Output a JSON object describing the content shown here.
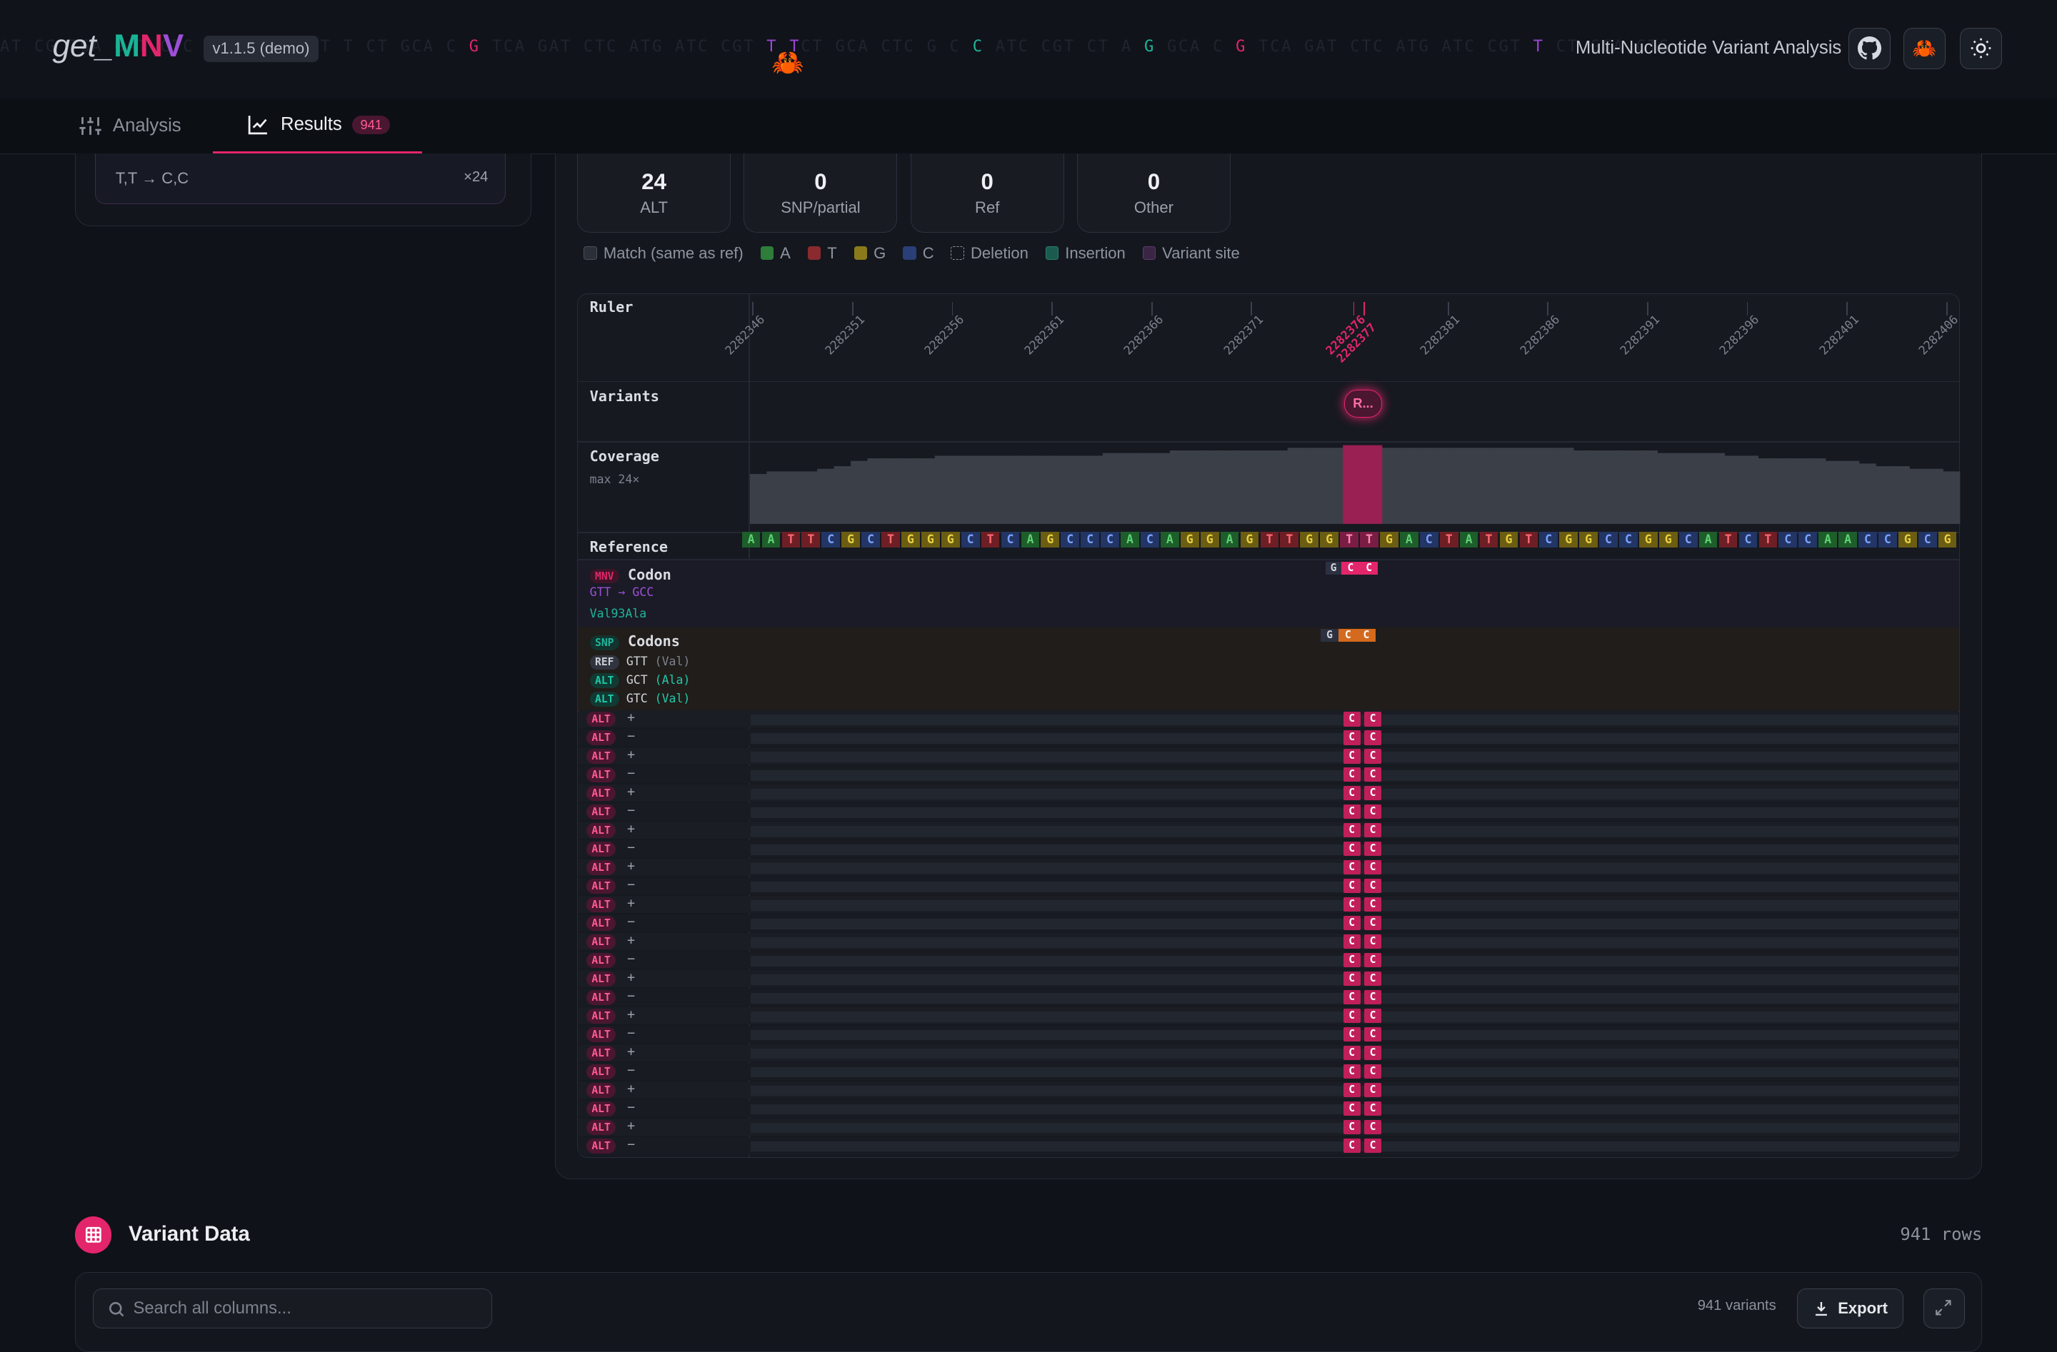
{
  "header": {
    "logo_prefix": "get_",
    "logo_m": "M",
    "logo_n": "N",
    "logo_v": "V",
    "version": "v1.1.5 (demo)",
    "title": "Multi-Nucleotide Variant Analysis",
    "buttons": [
      "github-icon",
      "crab-icon",
      "sun-icon"
    ]
  },
  "tabs": [
    {
      "label": "Analysis",
      "icon": "sliders-icon"
    },
    {
      "label": "Results",
      "icon": "chart-line-icon",
      "count": "941"
    }
  ],
  "left_panel": {
    "mnv_label": "T,T → C,C",
    "mnv_count": "×24"
  },
  "stats": [
    {
      "value": "24",
      "label": "ALT"
    },
    {
      "value": "0",
      "label": "SNP/partial"
    },
    {
      "value": "0",
      "label": "Ref"
    },
    {
      "value": "0",
      "label": "Other"
    }
  ],
  "legend": [
    {
      "label": "Match (same as ref)",
      "color": "#2a2f38"
    },
    {
      "label": "A",
      "color": "#2e7d3a"
    },
    {
      "label": "T",
      "color": "#8a2a2e"
    },
    {
      "label": "G",
      "color": "#8a7a1c"
    },
    {
      "label": "C",
      "color": "#2a3f77"
    },
    {
      "label": "Deletion",
      "color": "dashed"
    },
    {
      "label": "Insertion",
      "color": "#1c5a4e"
    },
    {
      "label": "Variant site",
      "color": "#3a2545"
    }
  ],
  "viewer": {
    "ruler_label": "Ruler",
    "ruler_ticks": [
      "2282346",
      "2282351",
      "2282356",
      "2282361",
      "2282366",
      "2282371",
      "2282376",
      "2282377",
      "2282381",
      "2282386",
      "2282391",
      "2282396",
      "2282401",
      "2282406"
    ],
    "variants_label": "Variants",
    "variant_chip": "R...",
    "coverage_label": "Coverage",
    "coverage_max": "max 24×",
    "reference_label": "Reference",
    "reference_sequence": "AATTCGCTGGGCTCAGCCCACAGGAGTTGGTTGACTATGTCGGCCGGCATCTCCAACCGCG",
    "mnv_badge": "MNV",
    "codon_label": "Codon",
    "codon_change": "GTT → GCC",
    "protein_change": "Val93Ala",
    "snp_badge": "SNP",
    "codons_label": "Codons",
    "codon_lines": [
      {
        "tag": "REF",
        "codon": "GTT",
        "aa": "(Val)"
      },
      {
        "tag": "ALT",
        "codon": "GCT",
        "aa": "(Ala)"
      },
      {
        "tag": "ALT",
        "codon": "GTC",
        "aa": "(Val)"
      }
    ],
    "mnv_codon_bases": [
      "G",
      "C",
      "C"
    ],
    "snp_codon_bases": [
      "G",
      "C",
      "C"
    ],
    "reads": [
      {
        "tag": "ALT",
        "strand": "+"
      },
      {
        "tag": "ALT",
        "strand": "−"
      },
      {
        "tag": "ALT",
        "strand": "+"
      },
      {
        "tag": "ALT",
        "strand": "−"
      },
      {
        "tag": "ALT",
        "strand": "+"
      },
      {
        "tag": "ALT",
        "strand": "−"
      },
      {
        "tag": "ALT",
        "strand": "+"
      },
      {
        "tag": "ALT",
        "strand": "−"
      },
      {
        "tag": "ALT",
        "strand": "+"
      },
      {
        "tag": "ALT",
        "strand": "−"
      },
      {
        "tag": "ALT",
        "strand": "+"
      },
      {
        "tag": "ALT",
        "strand": "−"
      },
      {
        "tag": "ALT",
        "strand": "+"
      },
      {
        "tag": "ALT",
        "strand": "−"
      },
      {
        "tag": "ALT",
        "strand": "+"
      },
      {
        "tag": "ALT",
        "strand": "−"
      },
      {
        "tag": "ALT",
        "strand": "+"
      },
      {
        "tag": "ALT",
        "strand": "−"
      },
      {
        "tag": "ALT",
        "strand": "+"
      },
      {
        "tag": "ALT",
        "strand": "−"
      },
      {
        "tag": "ALT",
        "strand": "+"
      },
      {
        "tag": "ALT",
        "strand": "−"
      },
      {
        "tag": "ALT",
        "strand": "+"
      },
      {
        "tag": "ALT",
        "strand": "−"
      }
    ],
    "read_bases": [
      "C",
      "C"
    ]
  },
  "variant_data": {
    "title": "Variant Data",
    "rows": "941 rows",
    "search_placeholder": "Search all columns...",
    "variants_count": "941 variants",
    "export_label": "Export"
  },
  "colors": {
    "accent": "#e3256b",
    "teal": "#1fb59c",
    "violet": "#9d4fd6"
  }
}
